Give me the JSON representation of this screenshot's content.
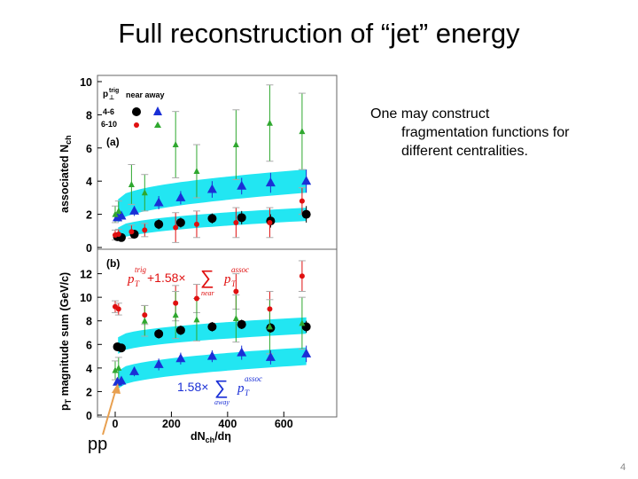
{
  "slide": {
    "title": "Full reconstruction of “jet” energy",
    "note_lines": [
      "One may construct",
      "fragmentation functions for",
      "different centralities."
    ],
    "pp_label": "pp",
    "page_number": "4"
  },
  "colors": {
    "band": "#22e6f2",
    "near": "#000000",
    "away": "#1a2fd6",
    "near_high": "#e01010",
    "away_high": "#2fa82f",
    "arrow": "#e8a050"
  },
  "chart_data": [
    {
      "id": "a",
      "type": "scatter",
      "panel_label": "(a)",
      "ylabel": "associated N",
      "ylabel_sub": "ch",
      "xlabel": "dN",
      "xlabel_sub": "ch",
      "xlabel_tail": "/dη",
      "ylim": [
        0,
        10
      ],
      "xlim": [
        -20,
        750
      ],
      "yticks": [
        0,
        2,
        4,
        6,
        8,
        10
      ],
      "legend": {
        "header_sym": "p",
        "header_sub": "⊥",
        "header_sup": "trig",
        "header_cols": "near away",
        "rows": [
          "4-6",
          "6-10"
        ]
      },
      "series": [
        {
          "name": "near 4-6",
          "marker": "circle",
          "color": "#000000",
          "x": [
            8,
            22,
            68,
            155,
            233,
            345,
            450,
            553,
            680
          ],
          "y": [
            0.65,
            0.6,
            0.8,
            1.4,
            1.5,
            1.75,
            1.8,
            1.6,
            2.0
          ],
          "err": [
            0.15,
            0.15,
            0.2,
            0.3,
            0.3,
            0.3,
            0.4,
            0.4,
            0.5
          ]
        },
        {
          "name": "away 4-6",
          "marker": "triangle",
          "color": "#1a2fd6",
          "x": [
            8,
            22,
            68,
            155,
            233,
            345,
            450,
            553,
            680
          ],
          "y": [
            1.8,
            1.9,
            2.2,
            2.7,
            3.0,
            3.5,
            3.7,
            3.9,
            4.0
          ],
          "err": [
            0.2,
            0.2,
            0.3,
            0.4,
            0.4,
            0.5,
            0.5,
            0.6,
            0.7
          ]
        },
        {
          "name": "near 6-10",
          "marker": "smallcircle",
          "color": "#e01010",
          "x": [
            0,
            12,
            58,
            105,
            215,
            290,
            430,
            550,
            665
          ],
          "y": [
            0.75,
            0.8,
            0.95,
            1.05,
            1.2,
            1.4,
            1.5,
            1.5,
            2.8
          ],
          "err": [
            0.3,
            0.3,
            0.4,
            0.4,
            0.9,
            0.8,
            0.9,
            0.9,
            0.8
          ]
        },
        {
          "name": "away 6-10",
          "marker": "smalltriangle",
          "color": "#2fa82f",
          "x": [
            0,
            12,
            58,
            105,
            215,
            290,
            430,
            550,
            665
          ],
          "y": [
            2.0,
            2.2,
            3.8,
            3.3,
            6.2,
            4.6,
            6.2,
            7.5,
            7.0
          ],
          "err": [
            0.5,
            0.6,
            1.2,
            1.1,
            2.0,
            1.6,
            2.1,
            2.3,
            2.3
          ]
        }
      ],
      "bands": [
        {
          "name": "near band",
          "x": [
            10,
            680
          ],
          "y": [
            0.8,
            2.0
          ],
          "halfwidth": 0.4
        },
        {
          "name": "away band",
          "x": [
            10,
            680
          ],
          "y": [
            2.2,
            4.0
          ],
          "halfwidth": 0.7
        }
      ]
    },
    {
      "id": "b",
      "type": "scatter",
      "panel_label": "(b)",
      "ylabel": "p",
      "ylabel_sub": "T",
      "ylabel_tail": " magnitude sum (GeV/c)",
      "ylim": [
        0,
        14
      ],
      "xlim": [
        -20,
        750
      ],
      "yticks": [
        0,
        2,
        4,
        6,
        8,
        10,
        12
      ],
      "xticks": [
        0,
        200,
        400,
        600
      ],
      "annotation_near": {
        "p": "p",
        "sub1": "T",
        "sup1": "trig",
        "mid": " +1.58×",
        "sum": "∑",
        "p2": "p",
        "sub2": "T",
        "sup2": "assoc",
        "under": "near"
      },
      "annotation_away": {
        "pre": "1.58×",
        "sum": "∑",
        "p2": "p",
        "sub2": "T",
        "sup2": "assoc",
        "under": "away"
      },
      "series": [
        {
          "name": "near sum 4-6",
          "marker": "circle",
          "color": "#000000",
          "x": [
            8,
            22,
            155,
            233,
            345,
            450,
            553,
            680
          ],
          "y": [
            5.8,
            5.7,
            6.9,
            7.2,
            7.5,
            7.7,
            7.4,
            7.5
          ],
          "err": [
            0.3,
            0.3,
            0.4,
            0.4,
            0.4,
            0.4,
            0.4,
            0.5
          ]
        },
        {
          "name": "away sum 4-6",
          "marker": "triangle",
          "color": "#1a2fd6",
          "x": [
            8,
            22,
            68,
            155,
            233,
            345,
            450,
            553,
            680
          ],
          "y": [
            2.8,
            2.9,
            3.7,
            4.3,
            4.8,
            5.0,
            5.3,
            4.9,
            5.2
          ],
          "err": [
            0.3,
            0.3,
            0.4,
            0.5,
            0.5,
            0.5,
            0.6,
            0.6,
            0.7
          ]
        },
        {
          "name": "near sum 6-10",
          "marker": "smallcircle",
          "color": "#e01010",
          "x": [
            0,
            12,
            105,
            215,
            290,
            430,
            550,
            665
          ],
          "y": [
            9.2,
            9.0,
            8.5,
            9.5,
            9.9,
            10.5,
            9.0,
            11.8
          ],
          "err": [
            0.5,
            0.5,
            0.8,
            1.5,
            1.2,
            1.5,
            1.5,
            1.3
          ]
        },
        {
          "name": "away sum 6-10",
          "marker": "smalltriangle",
          "color": "#2fa82f",
          "x": [
            0,
            12,
            105,
            215,
            290,
            430,
            550,
            665
          ],
          "y": [
            3.8,
            4.0,
            8.0,
            8.5,
            8.1,
            8.2,
            7.5,
            7.8
          ],
          "err": [
            0.8,
            0.9,
            1.3,
            2.0,
            1.8,
            2.0,
            2.3,
            2.2
          ]
        }
      ],
      "bands": [
        {
          "name": "near band",
          "x": [
            10,
            680
          ],
          "y": [
            5.9,
            7.6
          ],
          "halfwidth": 0.7
        },
        {
          "name": "away band",
          "x": [
            10,
            680
          ],
          "y": [
            3.0,
            5.0
          ],
          "halfwidth": 0.75
        }
      ]
    }
  ]
}
